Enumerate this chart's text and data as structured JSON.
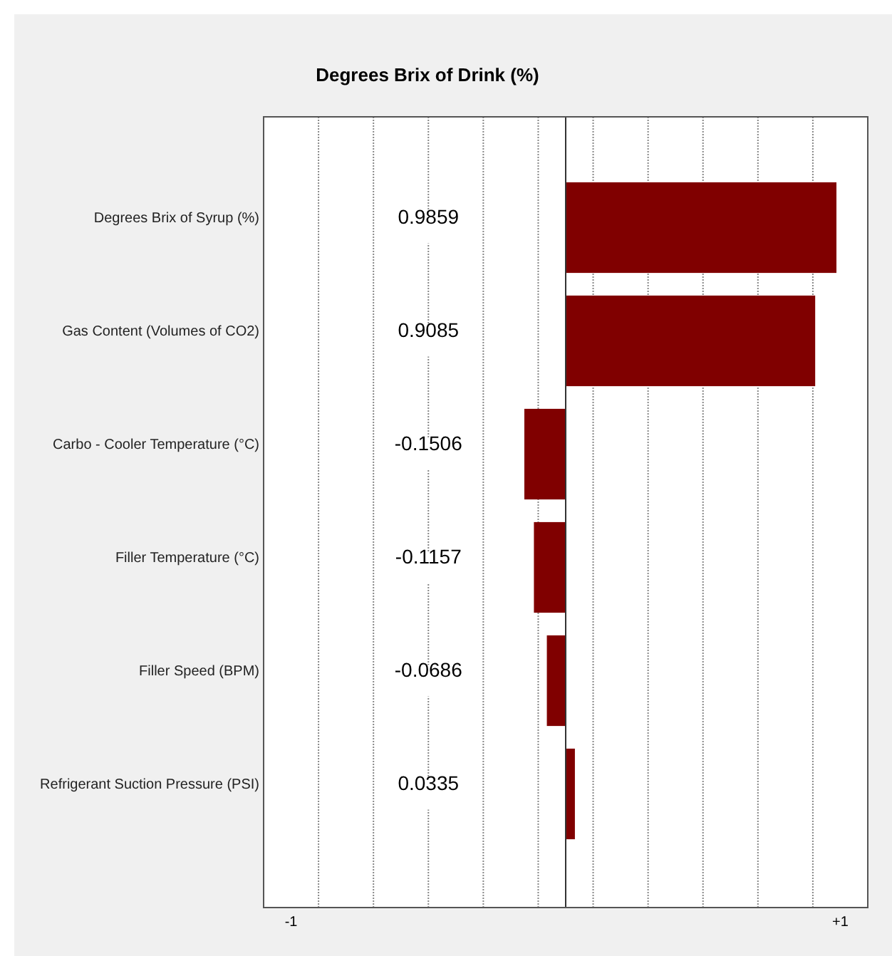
{
  "chart_data": {
    "type": "bar",
    "orientation": "horizontal",
    "title": "Degrees Brix of Drink (%)",
    "categories": [
      "Degrees Brix of Syrup (%)",
      "Gas Content (Volumes of CO2)",
      "Carbo - Cooler Temperature (°C)",
      "Filler Temperature (°C)",
      "Filler Speed (BPM)",
      "Refrigerant Suction Pressure (PSI)"
    ],
    "values": [
      0.9859,
      0.9085,
      -0.1506,
      -0.1157,
      -0.0686,
      0.0335
    ],
    "color": "#800000",
    "data_labels": true,
    "xlim": [
      -1.1,
      1.1
    ],
    "xticks": [
      {
        "value": -1,
        "label": "-1"
      },
      {
        "value": -0.9,
        "label": null
      },
      {
        "value": -0.7,
        "label": null
      },
      {
        "value": -0.5,
        "label": null
      },
      {
        "value": -0.3,
        "label": null
      },
      {
        "value": -0.1,
        "label": null
      },
      {
        "value": 0.1,
        "label": null
      },
      {
        "value": 0.3,
        "label": null
      },
      {
        "value": 0.5,
        "label": null
      },
      {
        "value": 0.7,
        "label": null
      },
      {
        "value": 0.9,
        "label": null
      },
      {
        "value": 1,
        "label": "+1"
      }
    ],
    "grid": "x"
  }
}
